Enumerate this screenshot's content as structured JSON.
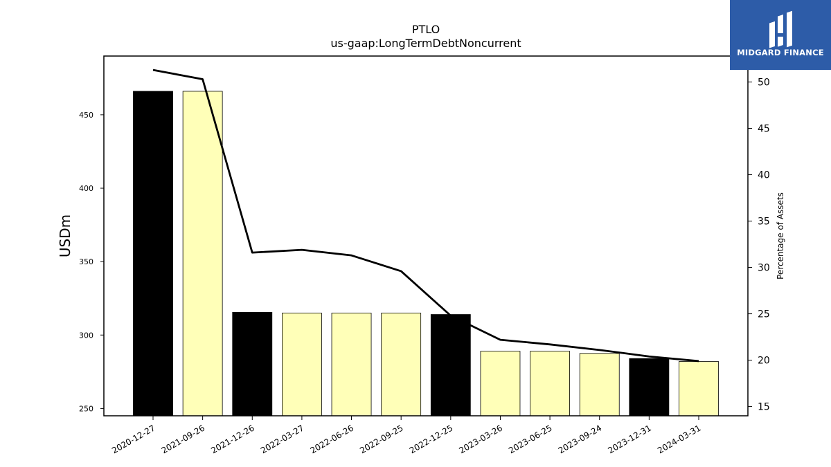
{
  "logo": {
    "text": "MIDGARD FINANCE",
    "background_color": "#2d5ca8"
  },
  "chart_data": {
    "type": "bar",
    "title": "PTLO",
    "subtitle": "us-gaap:LongTermDebtNoncurrent",
    "ylabel": "USDm",
    "y2label": "Percentage of Assets",
    "ylim": [
      245,
      490
    ],
    "y2lim": [
      14,
      52.8
    ],
    "yticks": [
      250,
      300,
      350,
      400,
      450
    ],
    "y2ticks": [
      15,
      20,
      25,
      30,
      35,
      40,
      45,
      50
    ],
    "categories": [
      "2020-12-27",
      "2021-09-26",
      "2021-12-26",
      "2022-03-27",
      "2022-06-26",
      "2022-09-25",
      "2022-12-25",
      "2023-03-26",
      "2023-06-25",
      "2023-09-24",
      "2023-12-31",
      "2024-03-31"
    ],
    "series": [
      {
        "axis": "left",
        "type": "bar",
        "values": [
          466,
          466,
          315.5,
          315,
          315,
          315,
          314,
          289,
          289,
          287.5,
          284,
          282
        ],
        "colors": [
          "#000000",
          "#ffffb8",
          "#000000",
          "#ffffb8",
          "#ffffb8",
          "#ffffb8",
          "#000000",
          "#ffffb8",
          "#ffffb8",
          "#ffffb8",
          "#000000",
          "#ffffb8"
        ]
      },
      {
        "axis": "right",
        "type": "line",
        "color": "#000000",
        "values": [
          51.3,
          50.3,
          31.6,
          31.9,
          31.3,
          29.6,
          24.8,
          22.2,
          21.7,
          21.1,
          20.4,
          19.9
        ]
      }
    ],
    "grid": false,
    "legend": "none"
  }
}
